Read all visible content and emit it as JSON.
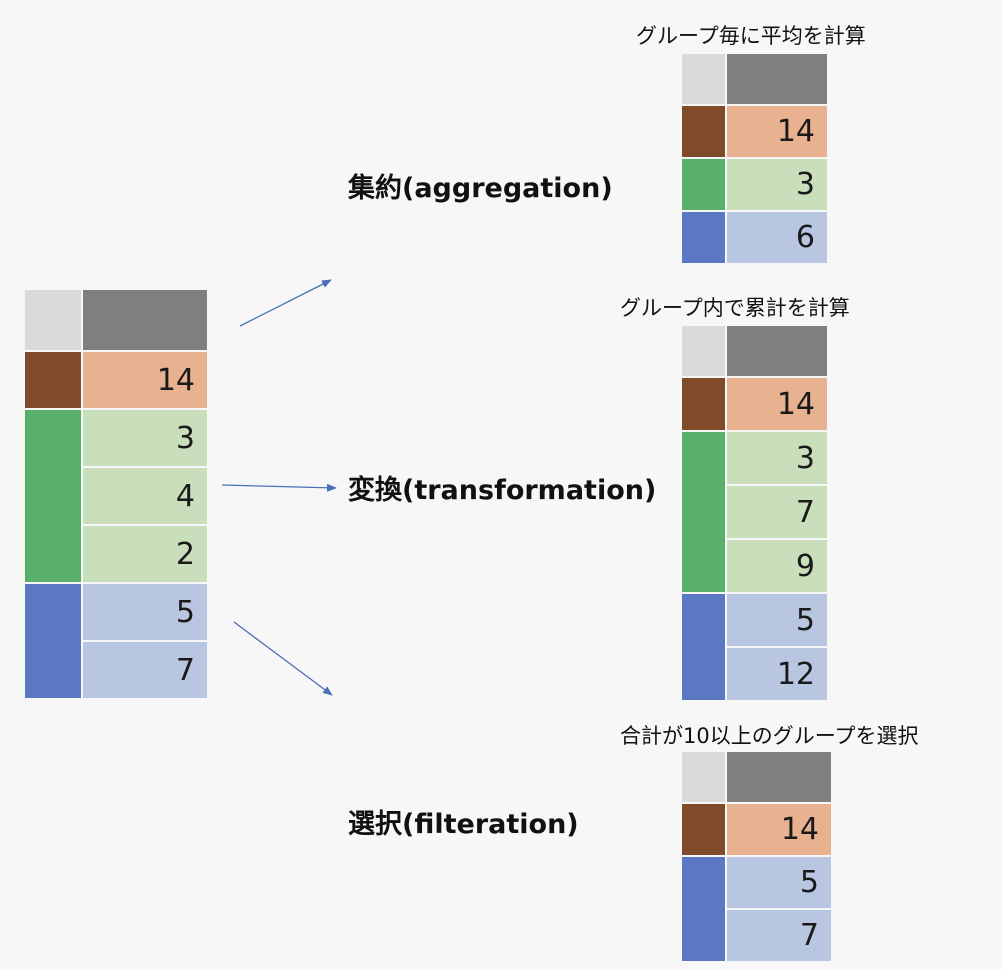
{
  "colors": {
    "header_key": "#d9d9d9",
    "header_val": "#7f7f7f",
    "brown_key": "#7f4b2a",
    "brown_val": "#e8b290",
    "green_key": "#58b06a",
    "green_val": "#c9dfbc",
    "blue_key": "#5b79c2",
    "blue_val": "#b8c6e2",
    "arrow": "#4a6fb6"
  },
  "source_table": {
    "groups": [
      {
        "color": "brown",
        "values": [
          "14"
        ]
      },
      {
        "color": "green",
        "values": [
          "3",
          "4",
          "2"
        ]
      },
      {
        "color": "blue",
        "values": [
          "5",
          "7"
        ]
      }
    ]
  },
  "operations": {
    "aggregation": {
      "label": "集約(aggregation)",
      "caption": "グループ毎に平均を計算",
      "groups": [
        {
          "color": "brown",
          "values": [
            "14"
          ]
        },
        {
          "color": "green",
          "values": [
            "3"
          ]
        },
        {
          "color": "blue",
          "values": [
            "6"
          ]
        }
      ]
    },
    "transformation": {
      "label": "変換(transformation)",
      "caption": "グループ内で累計を計算",
      "groups": [
        {
          "color": "brown",
          "values": [
            "14"
          ]
        },
        {
          "color": "green",
          "values": [
            "3",
            "7",
            "9"
          ]
        },
        {
          "color": "blue",
          "values": [
            "5",
            "12"
          ]
        }
      ]
    },
    "filteration": {
      "label": "選択(filteration)",
      "caption": "合計が10以上のグループを選択",
      "groups": [
        {
          "color": "brown",
          "values": [
            "14"
          ]
        },
        {
          "color": "blue",
          "values": [
            "5",
            "7"
          ]
        }
      ]
    }
  }
}
